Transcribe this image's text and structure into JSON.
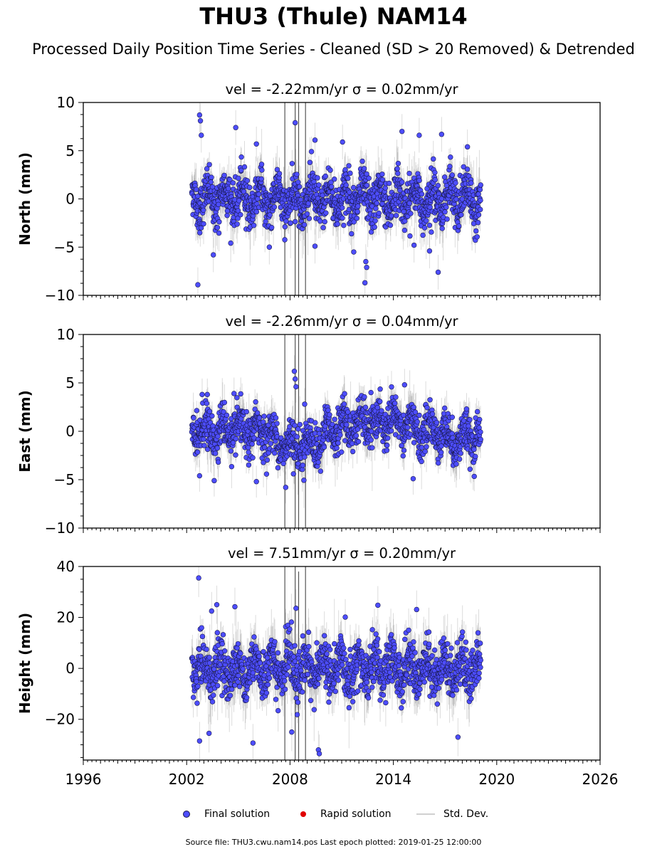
{
  "title": "THU3 (Thule) NAM14",
  "subtitle": "Processed Daily Position Time Series - Cleaned (SD > 20 Removed) & Detrended",
  "legend": {
    "final": "Final solution",
    "rapid": "Rapid solution",
    "std": "Std. Dev."
  },
  "footer": "Source file: THU3.cwu.nam14.pos  Last epoch plotted: 2019-01-25 12:00:00",
  "colors": {
    "final": "#4d4dff",
    "rapid": "#e00000",
    "std": "#808080",
    "marker_edge": "#1a1a4d"
  },
  "chart_data": [
    {
      "type": "scatter",
      "title": "vel = -2.22mm/yr   σ = 0.02mm/yr",
      "ylabel": "North (mm)",
      "xlim": [
        1996,
        2026
      ],
      "ylim": [
        -10,
        10
      ],
      "yticks": [
        -10,
        -5,
        0,
        5,
        10
      ],
      "ytick_labels": [
        "−10",
        "−5",
        "0",
        "5",
        "10"
      ],
      "time_span": [
        2002.3,
        2019.07
      ],
      "noise_sd": 1.6,
      "err_sd": 1.2,
      "outliers": [
        {
          "x": 2002.75,
          "y": 8.7
        },
        {
          "x": 2002.8,
          "y": 8.1
        },
        {
          "x": 2002.85,
          "y": 6.6
        },
        {
          "x": 2004.85,
          "y": 7.4
        },
        {
          "x": 2006.05,
          "y": 5.7
        },
        {
          "x": 2008.3,
          "y": 7.9
        },
        {
          "x": 2009.45,
          "y": 6.1
        },
        {
          "x": 2011.05,
          "y": 5.9
        },
        {
          "x": 2014.5,
          "y": 7.0
        },
        {
          "x": 2015.5,
          "y": 6.6
        },
        {
          "x": 2016.8,
          "y": 6.7
        },
        {
          "x": 2018.3,
          "y": 5.4
        },
        {
          "x": 2002.65,
          "y": -8.9
        },
        {
          "x": 2003.55,
          "y": -5.8
        },
        {
          "x": 2006.8,
          "y": -5.0
        },
        {
          "x": 2009.45,
          "y": -4.9
        },
        {
          "x": 2012.4,
          "y": -6.5
        },
        {
          "x": 2012.45,
          "y": -7.1
        },
        {
          "x": 2012.35,
          "y": -8.7
        },
        {
          "x": 2016.6,
          "y": -7.6
        },
        {
          "x": 2011.7,
          "y": -5.5
        },
        {
          "x": 2015.2,
          "y": -4.8
        },
        {
          "x": 2016.1,
          "y": -5.4
        }
      ]
    },
    {
      "type": "scatter",
      "title": "vel = -2.26mm/yr   σ = 0.04mm/yr",
      "ylabel": "East (mm)",
      "xlim": [
        1996,
        2026
      ],
      "ylim": [
        -10,
        10
      ],
      "yticks": [
        -10,
        -5,
        0,
        5,
        10
      ],
      "ytick_labels": [
        "−10",
        "−5",
        "0",
        "5",
        "10"
      ],
      "time_span": [
        2002.3,
        2019.07
      ],
      "noise_sd": 1.4,
      "err_sd": 1.1,
      "outliers": [
        {
          "x": 2008.25,
          "y": 6.2
        },
        {
          "x": 2008.3,
          "y": 5.4
        },
        {
          "x": 2008.35,
          "y": 4.6
        },
        {
          "x": 2002.9,
          "y": 3.8
        },
        {
          "x": 2003.2,
          "y": 3.8
        },
        {
          "x": 2004.75,
          "y": 3.9
        },
        {
          "x": 2014.65,
          "y": 4.8
        },
        {
          "x": 2012.7,
          "y": 4.0
        },
        {
          "x": 2008.85,
          "y": 2.8
        },
        {
          "x": 2007.75,
          "y": -5.8
        },
        {
          "x": 2003.6,
          "y": -5.1
        },
        {
          "x": 2002.75,
          "y": -4.6
        },
        {
          "x": 2008.2,
          "y": -4.4
        },
        {
          "x": 2015.15,
          "y": -4.9
        },
        {
          "x": 2006.05,
          "y": -5.2
        },
        {
          "x": 2018.25,
          "y": 2.3
        }
      ]
    },
    {
      "type": "scatter",
      "title": "vel = 7.51mm/yr   σ = 0.20mm/yr",
      "ylabel": "Height (mm)",
      "xlim": [
        1996,
        2026
      ],
      "ylim": [
        -36,
        40
      ],
      "yticks": [
        -20,
        0,
        20,
        40
      ],
      "ytick_labels": [
        "−20",
        "0",
        "20",
        "40"
      ],
      "xticks": [
        1996,
        2002,
        2008,
        2014,
        2020,
        2026
      ],
      "xtick_labels": [
        "1996",
        "2002",
        "2008",
        "2014",
        "2020",
        "2026"
      ],
      "time_span": [
        2002.3,
        2019.07
      ],
      "noise_sd": 6.5,
      "err_sd": 5.0,
      "outliers": [
        {
          "x": 2002.7,
          "y": 35.5
        },
        {
          "x": 2003.45,
          "y": 22.5
        },
        {
          "x": 2003.75,
          "y": 25.0
        },
        {
          "x": 2004.8,
          "y": 24.2
        },
        {
          "x": 2008.35,
          "y": 23.6
        },
        {
          "x": 2013.1,
          "y": 24.8
        },
        {
          "x": 2015.35,
          "y": 23.1
        },
        {
          "x": 2009.65,
          "y": -32.0
        },
        {
          "x": 2009.7,
          "y": -33.5
        },
        {
          "x": 2005.85,
          "y": -29.3
        },
        {
          "x": 2002.75,
          "y": -28.5
        },
        {
          "x": 2017.75,
          "y": -27.0
        },
        {
          "x": 2008.1,
          "y": -25.0
        },
        {
          "x": 2003.3,
          "y": -25.5
        }
      ]
    }
  ]
}
